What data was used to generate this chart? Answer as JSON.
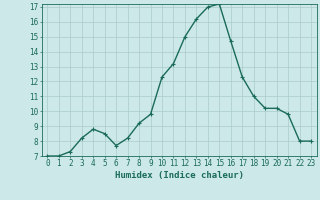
{
  "x": [
    0,
    1,
    2,
    3,
    4,
    5,
    6,
    7,
    8,
    9,
    10,
    11,
    12,
    13,
    14,
    15,
    16,
    17,
    18,
    19,
    20,
    21,
    22,
    23
  ],
  "y": [
    7.0,
    7.0,
    7.3,
    8.2,
    8.8,
    8.5,
    7.7,
    8.2,
    9.2,
    9.8,
    12.3,
    13.2,
    15.0,
    16.2,
    17.0,
    17.2,
    14.7,
    12.3,
    11.0,
    10.2,
    10.2,
    9.8,
    8.0,
    8.0
  ],
  "line_color": "#1a6b5a",
  "marker": "+",
  "marker_size": 3,
  "bg_color": "#cce8e8",
  "grid_color": "#aacccc",
  "xlabel": "Humidex (Indice chaleur)",
  "ylim": [
    7,
    17
  ],
  "xlim": [
    -0.5,
    23.5
  ],
  "yticks": [
    7,
    8,
    9,
    10,
    11,
    12,
    13,
    14,
    15,
    16,
    17
  ],
  "xticks": [
    0,
    1,
    2,
    3,
    4,
    5,
    6,
    7,
    8,
    9,
    10,
    11,
    12,
    13,
    14,
    15,
    16,
    17,
    18,
    19,
    20,
    21,
    22,
    23
  ],
  "label_fontsize": 6.5,
  "tick_fontsize": 5.5,
  "line_width": 1.0
}
